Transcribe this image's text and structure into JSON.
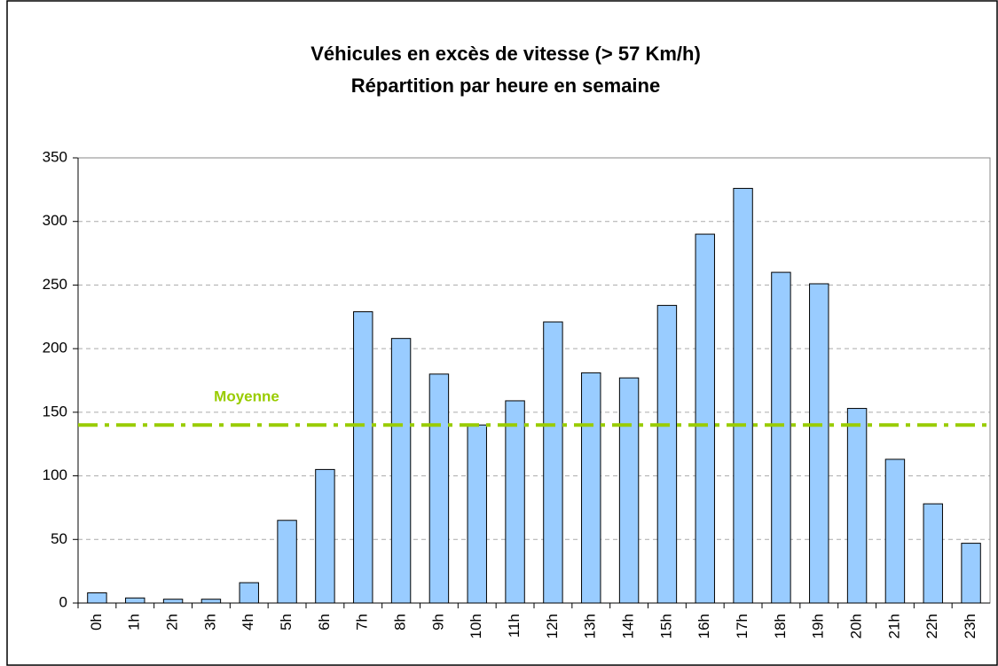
{
  "chart_data": {
    "type": "bar",
    "title": "Véhicules en excès de vitesse (> 57 Km/h)",
    "subtitle": "Répartition par heure en semaine",
    "categories": [
      "0h",
      "1h",
      "2h",
      "3h",
      "4h",
      "5h",
      "6h",
      "7h",
      "8h",
      "9h",
      "10h",
      "11h",
      "12h",
      "13h",
      "14h",
      "15h",
      "16h",
      "17h",
      "18h",
      "19h",
      "20h",
      "21h",
      "22h",
      "23h"
    ],
    "values": [
      8,
      4,
      3,
      3,
      16,
      65,
      105,
      229,
      208,
      180,
      140,
      159,
      221,
      181,
      177,
      234,
      290,
      326,
      260,
      251,
      153,
      113,
      78,
      47
    ],
    "color": "#99ccff",
    "ylim": [
      0,
      350
    ],
    "yticks": [
      0,
      50,
      100,
      150,
      200,
      250,
      300,
      350
    ],
    "grid": true,
    "average": {
      "label": "Moyenne",
      "value": 140,
      "color": "#99cc00"
    }
  }
}
